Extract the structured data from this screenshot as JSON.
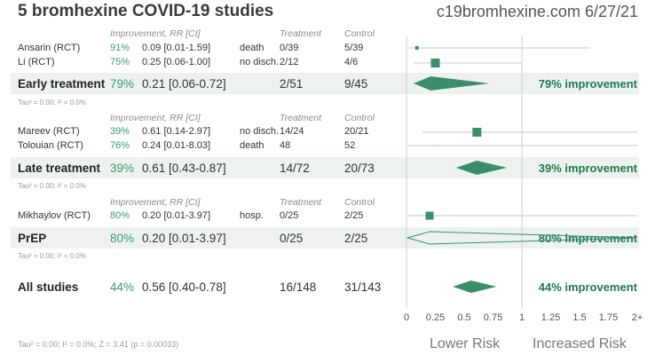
{
  "title": "5 bromhexine COVID-19 studies",
  "site": "c19bromhexine.com 6/27/21",
  "header": {
    "improvement": "Improvement, RR [CI]",
    "treatment": "Treatment",
    "control": "Control"
  },
  "groups": [
    {
      "studies": [
        {
          "name": "Ansarin (RCT)",
          "impr": "91%",
          "rr": "0.09 [0.01-1.59]",
          "outcome": "death",
          "treatment": "0/39",
          "control": "5/39"
        },
        {
          "name": "Li (RCT)",
          "impr": "75%",
          "rr": "0.25 [0.06-1.00]",
          "outcome": "no disch.",
          "treatment": "2/12",
          "control": "4/6"
        }
      ],
      "summary": {
        "label": "Early treatment",
        "impr": "79%",
        "rr": "0.21 [0.06-0.72]",
        "treatment": "2/51",
        "control": "9/45",
        "improvement_text": "79% improvement"
      },
      "tau": "Tau² = 0.00; I² = 0.0%"
    },
    {
      "studies": [
        {
          "name": "Mareev (RCT)",
          "impr": "39%",
          "rr": "0.61 [0.14-2.97]",
          "outcome": "no disch.",
          "treatment": "14/24",
          "control": "20/21"
        },
        {
          "name": "Tolouian (RCT)",
          "impr": "76%",
          "rr": "0.24 [0.01-8.03]",
          "outcome": "death",
          "treatment": "48",
          "control": "52"
        }
      ],
      "summary": {
        "label": "Late treatment",
        "impr": "39%",
        "rr": "0.61 [0.43-0.87]",
        "treatment": "14/72",
        "control": "20/73",
        "improvement_text": "39% improvement"
      },
      "tau": "Tau² = 0.00; I² = 0.0%"
    },
    {
      "studies": [
        {
          "name": "Mikhaylov (RCT)",
          "impr": "80%",
          "rr": "0.20 [0.01-3.97]",
          "outcome": "hosp.",
          "treatment": "0/25",
          "control": "2/25"
        }
      ],
      "summary": {
        "label": "PrEP",
        "impr": "80%",
        "rr": "0.20 [0.01-3.97]",
        "treatment": "0/25",
        "control": "2/25",
        "improvement_text": "80% improvement"
      },
      "tau": "Tau² = 0.00; I² = 0.0%"
    }
  ],
  "overall": {
    "label": "All studies",
    "impr": "44%",
    "rr": "0.56 [0.40-0.78]",
    "treatment": "16/148",
    "control": "31/143",
    "improvement_text": "44% improvement"
  },
  "footer": {
    "stats": "Tau² = 0.00; I² = 0.0%; Z = 3.41 (p = 0.00033)",
    "lower_risk": "Lower Risk",
    "increased_risk": "Increased Risk"
  },
  "colors": {
    "accent": "#3a9a6e",
    "marker": "#3a8f6a",
    "band": "#eef2ef"
  },
  "chart_data": {
    "type": "forest",
    "title": "5 bromhexine COVID-19 studies",
    "xlabel_left": "Lower Risk",
    "xlabel_right": "Increased Risk",
    "xlim": [
      0,
      2
    ],
    "xticks": [
      "0",
      "0.25",
      "0.5",
      "0.75",
      "1",
      "1.25",
      "1.5",
      "1.75",
      "2+"
    ],
    "studies": [
      {
        "name": "Ansarin (RCT)",
        "rr": 0.09,
        "lo": 0.01,
        "hi": 1.59
      },
      {
        "name": "Li (RCT)",
        "rr": 0.25,
        "lo": 0.06,
        "hi": 1.0
      },
      {
        "name": "Mareev (RCT)",
        "rr": 0.61,
        "lo": 0.14,
        "hi": 2.97
      },
      {
        "name": "Tolouian (RCT)",
        "rr": 0.24,
        "lo": 0.01,
        "hi": 8.03
      },
      {
        "name": "Mikhaylov (RCT)",
        "rr": 0.2,
        "lo": 0.01,
        "hi": 3.97
      }
    ],
    "summaries": [
      {
        "name": "Early treatment",
        "rr": 0.21,
        "lo": 0.06,
        "hi": 0.72
      },
      {
        "name": "Late treatment",
        "rr": 0.61,
        "lo": 0.43,
        "hi": 0.87
      },
      {
        "name": "PrEP",
        "rr": 0.2,
        "lo": 0.01,
        "hi": 3.97
      },
      {
        "name": "All studies",
        "rr": 0.56,
        "lo": 0.4,
        "hi": 0.78
      }
    ]
  }
}
